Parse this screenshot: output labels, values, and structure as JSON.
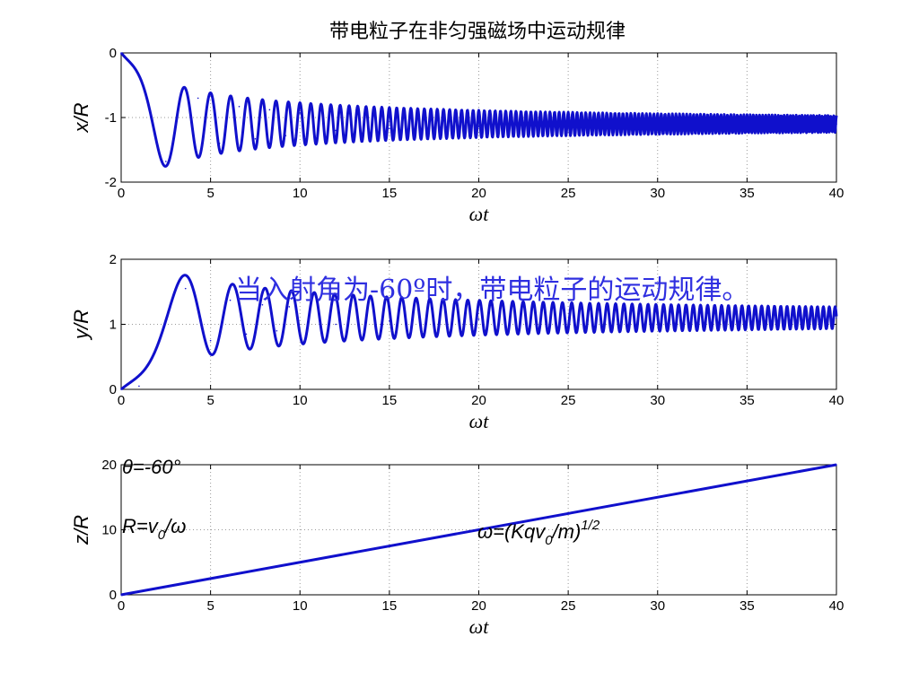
{
  "title": "带电粒子在非匀强磁场中运动规律",
  "annotation": "当入射角为-60º时，带电粒子的运动规律。",
  "formulas": {
    "theta": "θ=-60°",
    "radius_pre": "R=v",
    "radius_sub": "0",
    "radius_post": "/ω",
    "omega_pre": "ω=(Kqv",
    "omega_sub": "0",
    "omega_mid": "/m)",
    "omega_sup": "1/2"
  },
  "colors": {
    "line": "#1010CC",
    "accent": "#2F2FE0",
    "grid": "#9a9a9a"
  },
  "chart_data": [
    {
      "type": "line",
      "xlabel": "ωt",
      "ylabel": "x/R",
      "xlim": [
        0,
        40
      ],
      "ylim": [
        -2,
        0
      ],
      "xticks": [
        "0",
        "5",
        "10",
        "15",
        "20",
        "25",
        "30",
        "35",
        "40"
      ],
      "yticks": [
        "-2",
        "-1",
        "0"
      ],
      "grid": true,
      "model": {
        "start": 0,
        "asymptote": -1.1,
        "first_extreme": -1.68,
        "first_extreme_at": 2.5
      },
      "x": [
        0,
        2.5,
        4.3,
        5.5,
        6.6,
        7.5,
        8.3,
        9.2,
        10,
        12,
        15,
        20,
        30,
        40
      ],
      "y": [
        0,
        -1.68,
        -0.7,
        -1.4,
        -0.83,
        -1.33,
        -0.88,
        -1.28,
        -0.93,
        -1.2,
        -1.17,
        -1.14,
        -1.12,
        -1.1
      ]
    },
    {
      "type": "line",
      "xlabel": "ωt",
      "ylabel": "y/R",
      "xlim": [
        0,
        40
      ],
      "ylim": [
        0,
        2
      ],
      "xticks": [
        "0",
        "5",
        "10",
        "15",
        "20",
        "25",
        "30",
        "35",
        "40"
      ],
      "yticks": [
        "0",
        "1",
        "2"
      ],
      "grid": true,
      "model": {
        "start": 0,
        "asymptote": 1.1,
        "first_extreme": 1.55,
        "first_extreme_at": 3.6
      },
      "x": [
        0,
        1,
        3.6,
        5,
        6.1,
        7,
        7.9,
        8.7,
        9.4,
        12,
        15,
        20,
        30,
        40
      ],
      "y": [
        0,
        0.05,
        1.55,
        0.75,
        1.37,
        0.85,
        1.3,
        0.9,
        1.27,
        1.0,
        1.05,
        1.08,
        1.09,
        1.1
      ]
    },
    {
      "type": "line",
      "xlabel": "ωt",
      "ylabel": "z/R",
      "xlim": [
        0,
        40
      ],
      "ylim": [
        0,
        20
      ],
      "xticks": [
        "0",
        "5",
        "10",
        "15",
        "20",
        "25",
        "30",
        "35",
        "40"
      ],
      "yticks": [
        "0",
        "10",
        "20"
      ],
      "grid": true,
      "x": [
        0,
        40
      ],
      "y": [
        0,
        20
      ]
    }
  ]
}
